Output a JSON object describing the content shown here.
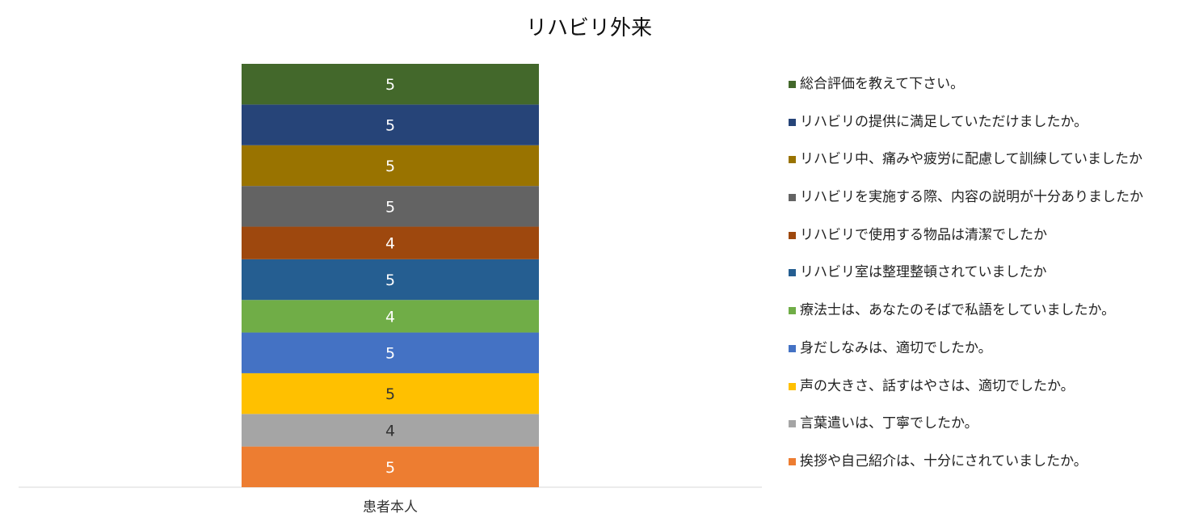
{
  "chart_data": {
    "type": "bar",
    "stacked": true,
    "title": "リハビリ外来",
    "categories": [
      "患者本人"
    ],
    "xlabel": "",
    "ylabel": "",
    "ylim": [
      0,
      52
    ],
    "grid": false,
    "legend_position": "right",
    "series": [
      {
        "name": "挨拶や自己紹介は、十分にされていましたか。",
        "values": [
          5
        ],
        "color": "#ED7D31",
        "label_color": "#FFFFFF"
      },
      {
        "name": "言葉遣いは、丁寧でしたか。",
        "values": [
          4
        ],
        "color": "#A5A5A5",
        "label_color": "#333333"
      },
      {
        "name": "声の大きさ、話すはやさは、適切でしたか。",
        "values": [
          5
        ],
        "color": "#FFC000",
        "label_color": "#333333"
      },
      {
        "name": "身だしなみは、適切でしたか。",
        "values": [
          5
        ],
        "color": "#4472C4",
        "label_color": "#FFFFFF"
      },
      {
        "name": "療法士は、あなたのそばで私語をしていましたか。",
        "values": [
          4
        ],
        "color": "#70AD47",
        "label_color": "#FFFFFF"
      },
      {
        "name": "リハビリ室は整理整頓されていましたか",
        "values": [
          5
        ],
        "color": "#255E91",
        "label_color": "#FFFFFF"
      },
      {
        "name": "リハビリで使用する物品は清潔でしたか",
        "values": [
          4
        ],
        "color": "#9E480E",
        "label_color": "#FFFFFF"
      },
      {
        "name": "リハビリを実施する際、内容の説明が十分ありましたか",
        "values": [
          5
        ],
        "color": "#636363",
        "label_color": "#FFFFFF"
      },
      {
        "name": "リハビリ中、痛みや疲労に配慮して訓練していましたか",
        "values": [
          5
        ],
        "color": "#997300",
        "label_color": "#FFFFFF"
      },
      {
        "name": "リハビリの提供に満足していただけましたか。",
        "values": [
          5
        ],
        "color": "#264478",
        "label_color": "#FFFFFF"
      },
      {
        "name": "総合評価を教えて下さい。",
        "values": [
          5
        ],
        "color": "#43682B",
        "label_color": "#FFFFFF"
      }
    ]
  }
}
